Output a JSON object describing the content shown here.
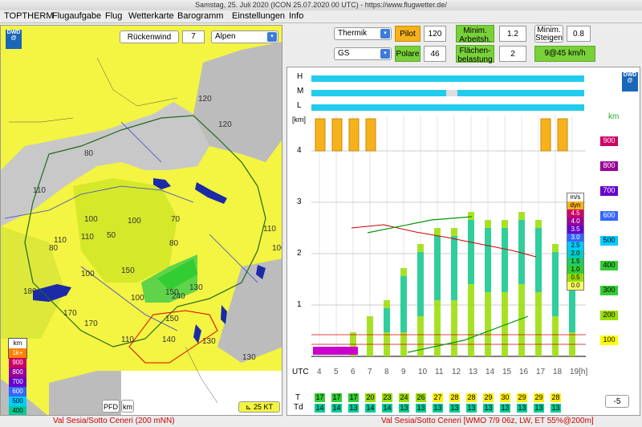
{
  "window_title": "Samstag, 25. Juli 2020 (ICON 25.07.2020 00 UTC) - https://www.flugwetter.de/",
  "menu": [
    "TOPTHERM",
    "Flugaufgabe",
    "Flug",
    "Wetterkarte",
    "Barogramm",
    "Einstellungen",
    "Info"
  ],
  "left": {
    "wind_dropdown": "Rückenwind",
    "wind_number": "7",
    "region_dropdown": "Alpen",
    "logo": "DWD",
    "pfd_label": "PFD",
    "km_label": "km",
    "scale_label": "25 KT",
    "legend_title": "km",
    "legend": [
      {
        "label": "1k+",
        "color": "#ff8000"
      },
      {
        "label": "900",
        "color": "#cc0066"
      },
      {
        "label": "800",
        "color": "#990099"
      },
      {
        "label": "700",
        "color": "#6600cc"
      },
      {
        "label": "600",
        "color": "#3366ff"
      },
      {
        "label": "500",
        "color": "#00ccff"
      },
      {
        "label": "400",
        "color": "#00cc99"
      },
      {
        "label": "300",
        "color": "#33cc33"
      },
      {
        "label": "200",
        "color": "#99dd00"
      },
      {
        "label": "100",
        "color": "#ffff00"
      }
    ],
    "map_numbers": [
      "120",
      "80",
      "120",
      "110",
      "100",
      "100",
      "110",
      "70",
      "80",
      "110",
      "80",
      "100",
      "150",
      "50",
      "180",
      "100",
      "150",
      "240",
      "170",
      "110",
      "150",
      "170",
      "140",
      "130",
      "130",
      "130",
      "110",
      "100"
    ]
  },
  "right": {
    "thermik_dropdown": "Thermik",
    "gs_dropdown": "GS",
    "pilot_label": "Pilot",
    "pilot_value": "120",
    "polare_label": "Polare",
    "polare_value": "46",
    "min_arbeit_label": "Minim. Arbeitsh.",
    "min_arbeit_value": "1.2",
    "flaechen_label": "Flächen-belastung",
    "flaechen_value": "2",
    "min_steigen_label": "Minim. Steigen",
    "min_steigen_value": "0.8",
    "result": "9@45 km/h",
    "logo": "DWD",
    "cloud_levels": [
      "H",
      "M",
      "L"
    ],
    "y_axis_label": "[km]",
    "y_ticks": [
      "4",
      "3",
      "2",
      "1"
    ],
    "x_axis_prefix": "UTC",
    "x_ticks": [
      "4",
      "5",
      "6",
      "7",
      "8",
      "9",
      "10",
      "11",
      "12",
      "13",
      "14",
      "15",
      "16",
      "17",
      "18",
      "19[h]"
    ],
    "right_axis_label": "km",
    "right_axis": [
      {
        "label": "900",
        "color": "#cc0066"
      },
      {
        "label": "800",
        "color": "#990099"
      },
      {
        "label": "700",
        "color": "#6600cc"
      },
      {
        "label": "600",
        "color": "#3366ff"
      },
      {
        "label": "500",
        "color": "#00ccff"
      },
      {
        "label": "400",
        "color": "#33cc33"
      },
      {
        "label": "300",
        "color": "#33cc33"
      },
      {
        "label": "200",
        "color": "#99dd00"
      },
      {
        "label": "100",
        "color": "#ffff00"
      }
    ],
    "ms_legend_title": "m/s",
    "ms_legend": [
      {
        "label": "dyn",
        "color": "#f7b21b"
      },
      {
        "label": "4.5",
        "color": "#cc0066"
      },
      {
        "label": "4.0",
        "color": "#990099"
      },
      {
        "label": "3.5",
        "color": "#6600cc"
      },
      {
        "label": "3.0",
        "color": "#3366ff"
      },
      {
        "label": "2.5",
        "color": "#00ccff"
      },
      {
        "label": "2.0",
        "color": "#00cccc"
      },
      {
        "label": "1.5",
        "color": "#22cc66"
      },
      {
        "label": "1.0",
        "color": "#33cc33"
      },
      {
        "label": "0.5",
        "color": "#99dd00"
      },
      {
        "label": "0.0",
        "color": "#ffff66"
      }
    ],
    "t_label": "T",
    "td_label": "Td",
    "t_values": [
      "17",
      "17",
      "17",
      "20",
      "23",
      "24",
      "26",
      "27",
      "28",
      "28",
      "29",
      "30",
      "29",
      "29",
      "28"
    ],
    "td_values": [
      "14",
      "14",
      "13",
      "14",
      "14",
      "13",
      "13",
      "13",
      "13",
      "13",
      "13",
      "13",
      "13",
      "13",
      "13"
    ],
    "offset_value": "-5"
  },
  "status_left": "Val Sesia/Sotto Ceneri (200 mNN)",
  "status_right": "Val Sesia/Sotto Ceneri [WMO 7/9 06z, LW, ET  55%@200m]"
}
